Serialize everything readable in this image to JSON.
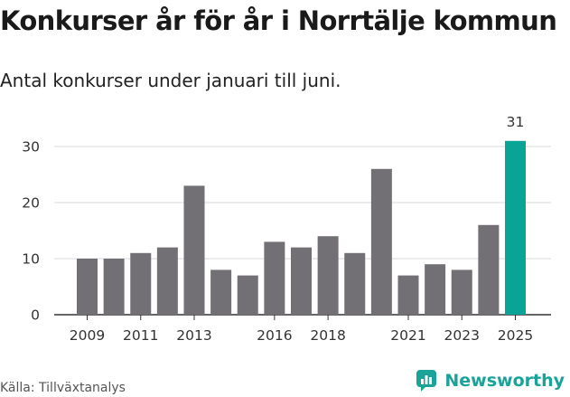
{
  "title": "Konkurser år för år i Norrtälje kommun",
  "subtitle": "Antal konkurser under januari till juni.",
  "source": "Källa: Tillväxtanalys",
  "brand": {
    "name": "Newsworthy",
    "icon": "newsworthy-logo-icon",
    "color": "#1aa398"
  },
  "colors": {
    "bar": "#727075",
    "highlight": "#0aa496",
    "grid": "#d9d9d9",
    "axis": "#333333"
  },
  "chart_data": {
    "type": "bar",
    "categories": [
      "2009",
      "2010",
      "2011",
      "2012",
      "2013",
      "2014",
      "2015",
      "2016",
      "2017",
      "2018",
      "2019",
      "2020",
      "2021",
      "2022",
      "2023",
      "2024",
      "2025"
    ],
    "x_tick_labels": [
      "2009",
      "",
      "2011",
      "",
      "2013",
      "",
      "",
      "2016",
      "",
      "2018",
      "",
      "",
      "2021",
      "",
      "2023",
      "",
      "2025"
    ],
    "values": [
      10,
      10,
      11,
      12,
      23,
      8,
      7,
      13,
      12,
      14,
      11,
      26,
      7,
      9,
      8,
      16,
      31
    ],
    "highlight_index": 16,
    "highlight_label": "31",
    "y_ticks": [
      0,
      10,
      20,
      30
    ],
    "ylim": [
      0,
      31
    ],
    "grid": true,
    "title": "Konkurser år för år i Norrtälje kommun",
    "xlabel": "",
    "ylabel": ""
  }
}
